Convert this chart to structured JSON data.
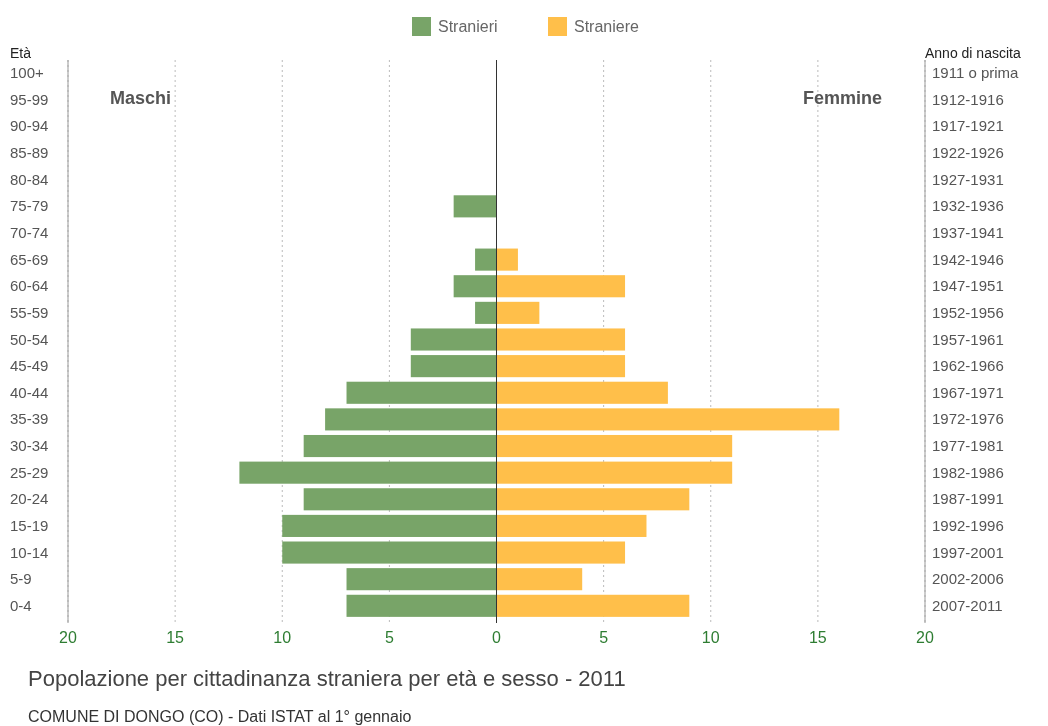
{
  "chart_data": {
    "type": "bar",
    "orientation": "horizontal",
    "title": "Popolazione per cittadinanza straniera per età e sesso - 2011",
    "ylabel": "Età",
    "y2label": "Anno di nascita",
    "categories": [
      "100+",
      "95-99",
      "90-94",
      "85-89",
      "80-84",
      "75-79",
      "70-74",
      "65-69",
      "60-64",
      "55-59",
      "50-54",
      "45-49",
      "40-44",
      "35-39",
      "30-34",
      "25-29",
      "20-24",
      "15-19",
      "10-14",
      "5-9",
      "0-4"
    ],
    "y2_categories": [
      "1911 o prima",
      "1912-1916",
      "1917-1921",
      "1922-1926",
      "1927-1931",
      "1932-1936",
      "1937-1941",
      "1942-1946",
      "1947-1951",
      "1952-1956",
      "1957-1961",
      "1962-1966",
      "1967-1971",
      "1972-1976",
      "1977-1981",
      "1982-1986",
      "1987-1991",
      "1992-1996",
      "1997-2001",
      "2002-2006",
      "2007-2011"
    ],
    "series": [
      {
        "name": "Stranieri",
        "color": "#78a468",
        "values": [
          0,
          0,
          0,
          0,
          0,
          -2,
          0,
          -1,
          -2,
          -1,
          -4,
          -4,
          -7,
          -8,
          -9,
          -12,
          -9,
          -10,
          -10,
          -7,
          -7
        ]
      },
      {
        "name": "Straniere",
        "color": "#ffbf4a",
        "values": [
          0,
          0,
          0,
          0,
          0,
          0,
          0,
          1,
          6,
          2,
          6,
          6,
          8,
          16,
          11,
          11,
          9,
          7,
          6,
          4,
          9
        ]
      }
    ],
    "xlim": [
      -20,
      20
    ],
    "xticks": [
      {
        "value": -20,
        "label": "20"
      },
      {
        "value": -15,
        "label": "15"
      },
      {
        "value": -10,
        "label": "10"
      },
      {
        "value": -5,
        "label": "5"
      },
      0,
      5,
      10,
      15,
      20
    ],
    "grid": "x",
    "legend": "top",
    "stacked": true,
    "annotations": [
      "Maschi",
      "Femmine",
      "COMUNE DI DONGO (CO) - Dati ISTAT al 1° gennaio"
    ]
  }
}
